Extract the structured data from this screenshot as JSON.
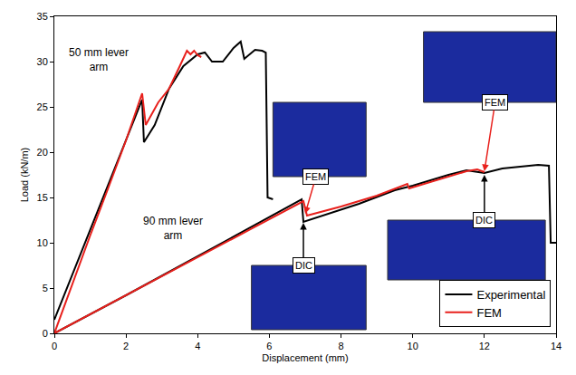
{
  "chart_data": {
    "type": "line",
    "x_label": "Displacement (mm)",
    "y_label": "Load (kN/m)",
    "xlim": [
      0,
      14
    ],
    "xticks": [
      0,
      2,
      4,
      6,
      8,
      10,
      12,
      14
    ],
    "ylim": [
      0,
      35
    ],
    "yticks": [
      0,
      5,
      10,
      15,
      20,
      25,
      30,
      35
    ],
    "grid": false,
    "legend": "bottom right",
    "series": [
      {
        "name": "Experimental",
        "color": "#000000",
        "line_style": "solid",
        "x": [
          0,
          0.5,
          1,
          1.5,
          2,
          2.45,
          2.5,
          2.8,
          3.2,
          3.6,
          4,
          4.2,
          4.4,
          4.7,
          5,
          5.2,
          5.3,
          5.6,
          5.8,
          5.9,
          5.95,
          6.1,
          null,
          0,
          2,
          4,
          6,
          6.9,
          6.95,
          7.5,
          8.5,
          9.5,
          10,
          10.5,
          11,
          11.5,
          12,
          12.5,
          13,
          13.5,
          13.8,
          13.85,
          14
        ],
        "values": [
          1.5,
          6.5,
          11.5,
          16.5,
          21.5,
          25.8,
          21.1,
          23,
          27,
          29.5,
          30.8,
          31,
          30,
          30,
          31.5,
          32.2,
          30.3,
          31.3,
          31.2,
          31,
          15,
          14.8,
          null,
          0,
          4.2,
          8.5,
          12.8,
          14.8,
          12.3,
          13,
          14.3,
          15.8,
          16.3,
          16.9,
          17.5,
          18,
          17.7,
          18.2,
          18.4,
          18.6,
          18.5,
          10,
          10
        ]
      },
      {
        "name": "FEM",
        "color": "#e8201c",
        "line_style": "solid",
        "x": [
          0,
          0.5,
          1,
          1.5,
          2,
          2.45,
          2.55,
          2.9,
          3.2,
          3.5,
          3.7,
          3.8,
          3.9,
          4,
          4.1,
          null,
          0,
          2,
          4,
          6,
          6.95,
          7.05,
          8,
          9,
          9.85,
          9.9,
          10.5,
          11,
          11.5,
          11.8,
          12
        ],
        "values": [
          0,
          5.5,
          10.8,
          16,
          21.3,
          26.5,
          23,
          25.5,
          27,
          29.5,
          31.2,
          30.8,
          31.2,
          30.7,
          30.5,
          null,
          0,
          4.2,
          8.4,
          12.6,
          14.6,
          13,
          14,
          15.2,
          16.5,
          16,
          16.7,
          17.3,
          17.9,
          18.1,
          17.8
        ]
      }
    ],
    "annotations": [
      {
        "text": "50 mm lever arm"
      },
      {
        "text": "90 mm lever arm"
      },
      {
        "text": "FEM",
        "x": 7.0,
        "y": 13.2
      },
      {
        "text": "FEM",
        "x": 12.0,
        "y": 17.9
      },
      {
        "text": "DIC",
        "x": 6.95,
        "y": 12.2
      },
      {
        "text": "DIC",
        "x": 12.0,
        "y": 17.5
      }
    ]
  }
}
